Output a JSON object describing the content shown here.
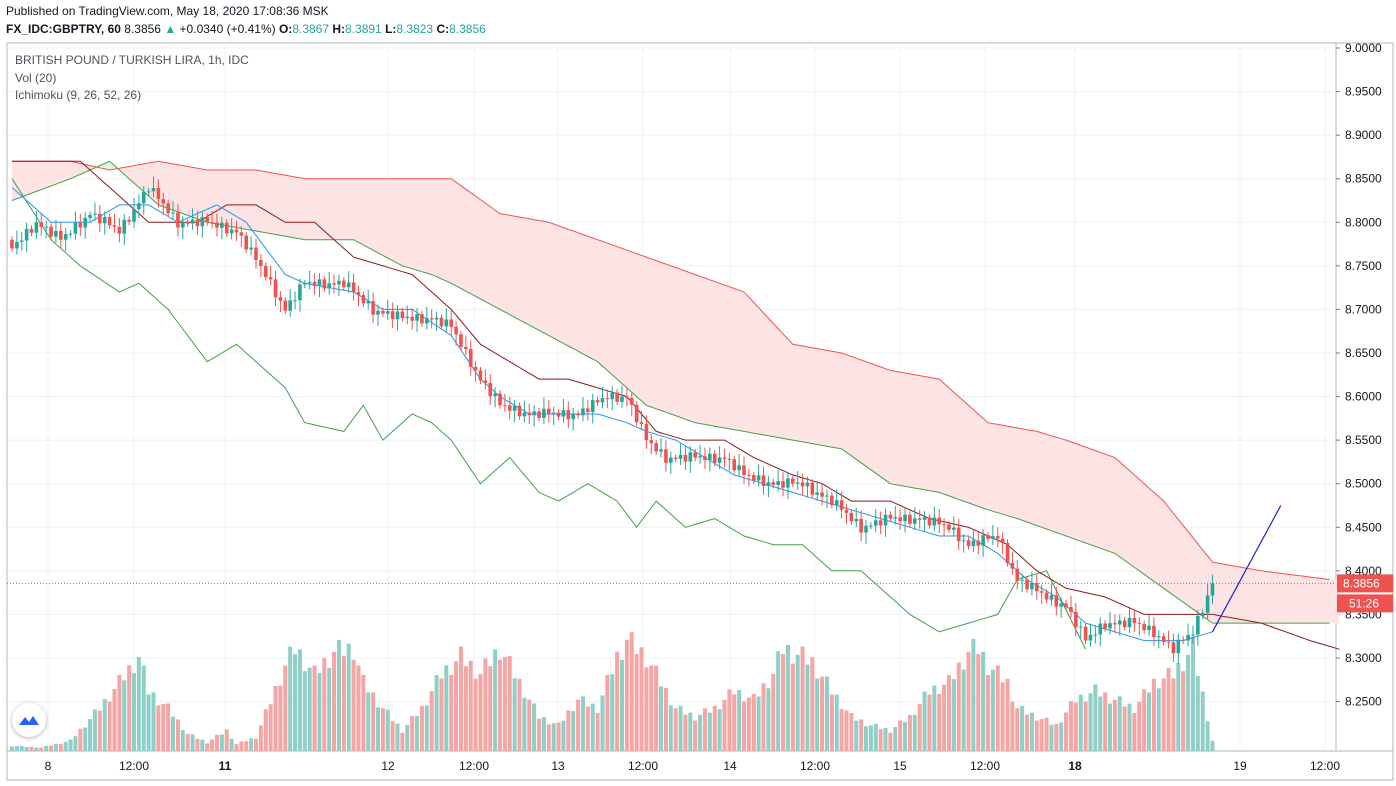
{
  "header": {
    "published": "Published on TradingView.com, May 18, 2020 17:08:36 MSK",
    "symbol": "FX_IDC:GBPTRY, 60",
    "last": "8.3856",
    "change_arrow": "▲",
    "change": "+0.0340 (+0.41%)",
    "o_label": "O:",
    "o": "8.3867",
    "h_label": "H:",
    "h": "8.3891",
    "l_label": "L:",
    "l": "8.3823",
    "c_label": "C:",
    "c": "8.3856"
  },
  "legend": {
    "title": "BRITISH POUND / TURKISH LIRA, 1h, IDC",
    "vol": "Vol (20)",
    "ichimoku": "Ichimoku (9, 26, 52, 26)"
  },
  "colors": {
    "up": "#26a69a",
    "down": "#ef5350",
    "vol_up": "#8fcfc8",
    "vol_down": "#f5a5a3",
    "conversion": "#2196f3",
    "base": "#8b1a1a",
    "lagging": "#43a047",
    "span_a": "#43a047",
    "span_b": "#ef5350",
    "cloud_bull": "#e3f2e3",
    "cloud_bear": "#fde3e3",
    "drawn_line": "#1f1fd6",
    "grid": "#eef0f3"
  },
  "price_label": {
    "value": "8.3856",
    "countdown": "51:26"
  },
  "logo_icon": "tradingview-logo-icon",
  "chart_data": {
    "type": "candlestick",
    "y_ticks": [
      "9.0000",
      "8.9500",
      "8.9000",
      "8.8500",
      "8.8000",
      "8.7500",
      "8.7000",
      "8.6500",
      "8.6000",
      "8.5500",
      "8.5000",
      "8.4500",
      "8.4000",
      "8.3500",
      "8.3000",
      "8.2500"
    ],
    "ylim": [
      8.22,
      9.0
    ],
    "x_ticks": [
      "8",
      "12:00",
      "11",
      "12",
      "12:00",
      "13",
      "12:00",
      "14",
      "12:00",
      "15",
      "12:00",
      "18",
      "19",
      "12:00"
    ],
    "x_bold": [
      "11",
      "18"
    ],
    "last_price": 8.3856,
    "close_anchors": [
      [
        0,
        8.77
      ],
      [
        5,
        8.8
      ],
      [
        10,
        8.78
      ],
      [
        16,
        8.81
      ],
      [
        22,
        8.79
      ],
      [
        28,
        8.84
      ],
      [
        34,
        8.8
      ],
      [
        40,
        8.8
      ],
      [
        46,
        8.79
      ],
      [
        52,
        8.74
      ],
      [
        56,
        8.7
      ],
      [
        60,
        8.73
      ],
      [
        68,
        8.73
      ],
      [
        74,
        8.7
      ],
      [
        80,
        8.69
      ],
      [
        86,
        8.69
      ],
      [
        90,
        8.68
      ],
      [
        96,
        8.62
      ],
      [
        100,
        8.59
      ],
      [
        106,
        8.58
      ],
      [
        112,
        8.58
      ],
      [
        116,
        8.58
      ],
      [
        122,
        8.6
      ],
      [
        126,
        8.6
      ],
      [
        130,
        8.55
      ],
      [
        134,
        8.53
      ],
      [
        140,
        8.53
      ],
      [
        146,
        8.53
      ],
      [
        150,
        8.51
      ],
      [
        156,
        8.5
      ],
      [
        162,
        8.5
      ],
      [
        168,
        8.48
      ],
      [
        174,
        8.45
      ],
      [
        180,
        8.46
      ],
      [
        186,
        8.46
      ],
      [
        192,
        8.45
      ],
      [
        196,
        8.43
      ],
      [
        202,
        8.44
      ],
      [
        206,
        8.39
      ],
      [
        212,
        8.37
      ],
      [
        216,
        8.36
      ],
      [
        220,
        8.32
      ],
      [
        224,
        8.34
      ],
      [
        230,
        8.34
      ],
      [
        234,
        8.33
      ],
      [
        238,
        8.31
      ],
      [
        242,
        8.33
      ],
      [
        246,
        8.3856
      ]
    ],
    "volume_anchors": [
      [
        0,
        0.03
      ],
      [
        6,
        0.02
      ],
      [
        12,
        0.06
      ],
      [
        18,
        0.25
      ],
      [
        22,
        0.4
      ],
      [
        26,
        0.55
      ],
      [
        28,
        0.35
      ],
      [
        32,
        0.25
      ],
      [
        36,
        0.1
      ],
      [
        40,
        0.05
      ],
      [
        44,
        0.12
      ],
      [
        46,
        0.04
      ],
      [
        50,
        0.08
      ],
      [
        56,
        0.5
      ],
      [
        58,
        0.6
      ],
      [
        62,
        0.45
      ],
      [
        66,
        0.58
      ],
      [
        70,
        0.6
      ],
      [
        72,
        0.4
      ],
      [
        76,
        0.25
      ],
      [
        80,
        0.12
      ],
      [
        84,
        0.25
      ],
      [
        88,
        0.45
      ],
      [
        92,
        0.55
      ],
      [
        96,
        0.45
      ],
      [
        100,
        0.6
      ],
      [
        104,
        0.4
      ],
      [
        108,
        0.2
      ],
      [
        112,
        0.15
      ],
      [
        116,
        0.3
      ],
      [
        120,
        0.25
      ],
      [
        124,
        0.55
      ],
      [
        126,
        0.65
      ],
      [
        130,
        0.55
      ],
      [
        134,
        0.35
      ],
      [
        136,
        0.25
      ],
      [
        140,
        0.2
      ],
      [
        144,
        0.25
      ],
      [
        148,
        0.35
      ],
      [
        152,
        0.3
      ],
      [
        156,
        0.45
      ],
      [
        158,
        0.6
      ],
      [
        162,
        0.55
      ],
      [
        164,
        0.52
      ],
      [
        168,
        0.35
      ],
      [
        172,
        0.2
      ],
      [
        176,
        0.15
      ],
      [
        180,
        0.12
      ],
      [
        184,
        0.2
      ],
      [
        188,
        0.35
      ],
      [
        192,
        0.4
      ],
      [
        196,
        0.58
      ],
      [
        198,
        0.6
      ],
      [
        200,
        0.5
      ],
      [
        204,
        0.4
      ],
      [
        206,
        0.25
      ],
      [
        210,
        0.2
      ],
      [
        214,
        0.15
      ],
      [
        218,
        0.3
      ],
      [
        222,
        0.35
      ],
      [
        226,
        0.3
      ],
      [
        230,
        0.25
      ],
      [
        234,
        0.4
      ],
      [
        238,
        0.45
      ],
      [
        242,
        0.6
      ],
      [
        246,
        0.06
      ]
    ],
    "span_a": [
      [
        0,
        8.825
      ],
      [
        12,
        8.85
      ],
      [
        20,
        8.87
      ],
      [
        30,
        8.82
      ],
      [
        40,
        8.8
      ],
      [
        50,
        8.79
      ],
      [
        60,
        8.78
      ],
      [
        70,
        8.78
      ],
      [
        80,
        8.75
      ],
      [
        86,
        8.74
      ],
      [
        90,
        8.73
      ],
      [
        100,
        8.7
      ],
      [
        110,
        8.67
      ],
      [
        120,
        8.64
      ],
      [
        130,
        8.59
      ],
      [
        140,
        8.57
      ],
      [
        150,
        8.56
      ],
      [
        160,
        8.55
      ],
      [
        170,
        8.54
      ],
      [
        180,
        8.5
      ],
      [
        190,
        8.49
      ],
      [
        200,
        8.47
      ],
      [
        206,
        8.46
      ],
      [
        216,
        8.44
      ],
      [
        226,
        8.42
      ],
      [
        236,
        8.38
      ],
      [
        246,
        8.34
      ],
      [
        256,
        8.34
      ],
      [
        270,
        8.34
      ]
    ],
    "span_b": [
      [
        0,
        8.87
      ],
      [
        12,
        8.87
      ],
      [
        20,
        8.86
      ],
      [
        30,
        8.87
      ],
      [
        40,
        8.86
      ],
      [
        50,
        8.86
      ],
      [
        60,
        8.85
      ],
      [
        70,
        8.85
      ],
      [
        80,
        8.85
      ],
      [
        90,
        8.85
      ],
      [
        100,
        8.81
      ],
      [
        110,
        8.8
      ],
      [
        120,
        8.78
      ],
      [
        130,
        8.76
      ],
      [
        140,
        8.74
      ],
      [
        150,
        8.72
      ],
      [
        160,
        8.66
      ],
      [
        170,
        8.65
      ],
      [
        180,
        8.63
      ],
      [
        190,
        8.62
      ],
      [
        200,
        8.57
      ],
      [
        210,
        8.56
      ],
      [
        216,
        8.55
      ],
      [
        226,
        8.53
      ],
      [
        236,
        8.48
      ],
      [
        246,
        8.41
      ],
      [
        256,
        8.4
      ],
      [
        270,
        8.39
      ]
    ],
    "lagging": [
      [
        0,
        8.85
      ],
      [
        8,
        8.78
      ],
      [
        14,
        8.75
      ],
      [
        22,
        8.72
      ],
      [
        26,
        8.73
      ],
      [
        32,
        8.7
      ],
      [
        40,
        8.64
      ],
      [
        46,
        8.66
      ],
      [
        52,
        8.63
      ],
      [
        56,
        8.61
      ],
      [
        60,
        8.57
      ],
      [
        68,
        8.56
      ],
      [
        72,
        8.59
      ],
      [
        76,
        8.55
      ],
      [
        82,
        8.58
      ],
      [
        86,
        8.57
      ],
      [
        90,
        8.55
      ],
      [
        96,
        8.5
      ],
      [
        102,
        8.53
      ],
      [
        108,
        8.49
      ],
      [
        112,
        8.48
      ],
      [
        118,
        8.5
      ],
      [
        124,
        8.48
      ],
      [
        128,
        8.45
      ],
      [
        132,
        8.48
      ],
      [
        138,
        8.45
      ],
      [
        144,
        8.46
      ],
      [
        150,
        8.44
      ],
      [
        156,
        8.43
      ],
      [
        162,
        8.43
      ],
      [
        168,
        8.4
      ],
      [
        174,
        8.4
      ],
      [
        180,
        8.37
      ],
      [
        184,
        8.35
      ],
      [
        190,
        8.33
      ],
      [
        196,
        8.34
      ],
      [
        202,
        8.35
      ],
      [
        206,
        8.39
      ],
      [
        212,
        8.4
      ],
      [
        220,
        8.31
      ]
    ],
    "conversion": [
      [
        0,
        8.84
      ],
      [
        8,
        8.8
      ],
      [
        16,
        8.8
      ],
      [
        22,
        8.82
      ],
      [
        28,
        8.82
      ],
      [
        34,
        8.8
      ],
      [
        42,
        8.82
      ],
      [
        48,
        8.8
      ],
      [
        52,
        8.77
      ],
      [
        56,
        8.74
      ],
      [
        60,
        8.73
      ],
      [
        70,
        8.72
      ],
      [
        76,
        8.7
      ],
      [
        82,
        8.7
      ],
      [
        90,
        8.67
      ],
      [
        96,
        8.62
      ],
      [
        100,
        8.6
      ],
      [
        106,
        8.58
      ],
      [
        114,
        8.58
      ],
      [
        120,
        8.58
      ],
      [
        126,
        8.57
      ],
      [
        130,
        8.56
      ],
      [
        136,
        8.55
      ],
      [
        142,
        8.53
      ],
      [
        148,
        8.51
      ],
      [
        154,
        8.5
      ],
      [
        160,
        8.49
      ],
      [
        166,
        8.48
      ],
      [
        172,
        8.47
      ],
      [
        178,
        8.46
      ],
      [
        184,
        8.45
      ],
      [
        190,
        8.44
      ],
      [
        196,
        8.44
      ],
      [
        202,
        8.42
      ],
      [
        208,
        8.39
      ],
      [
        214,
        8.37
      ],
      [
        220,
        8.34
      ],
      [
        226,
        8.33
      ],
      [
        232,
        8.32
      ],
      [
        240,
        8.32
      ],
      [
        246,
        8.33
      ]
    ],
    "base": [
      [
        0,
        8.87
      ],
      [
        14,
        8.87
      ],
      [
        20,
        8.84
      ],
      [
        28,
        8.8
      ],
      [
        38,
        8.8
      ],
      [
        44,
        8.82
      ],
      [
        50,
        8.82
      ],
      [
        56,
        8.8
      ],
      [
        62,
        8.8
      ],
      [
        70,
        8.76
      ],
      [
        76,
        8.75
      ],
      [
        82,
        8.74
      ],
      [
        90,
        8.7
      ],
      [
        96,
        8.66
      ],
      [
        102,
        8.64
      ],
      [
        108,
        8.62
      ],
      [
        114,
        8.62
      ],
      [
        120,
        8.61
      ],
      [
        126,
        8.6
      ],
      [
        132,
        8.56
      ],
      [
        138,
        8.55
      ],
      [
        146,
        8.55
      ],
      [
        152,
        8.53
      ],
      [
        160,
        8.51
      ],
      [
        166,
        8.5
      ],
      [
        172,
        8.48
      ],
      [
        180,
        8.48
      ],
      [
        188,
        8.46
      ],
      [
        196,
        8.45
      ],
      [
        204,
        8.43
      ],
      [
        210,
        8.4
      ],
      [
        216,
        8.38
      ],
      [
        224,
        8.37
      ],
      [
        232,
        8.35
      ],
      [
        240,
        8.35
      ],
      [
        246,
        8.35
      ],
      [
        256,
        8.34
      ],
      [
        266,
        8.32
      ],
      [
        272,
        8.31
      ]
    ],
    "trendline": [
      [
        246,
        8.33
      ],
      [
        260,
        8.475
      ]
    ]
  }
}
